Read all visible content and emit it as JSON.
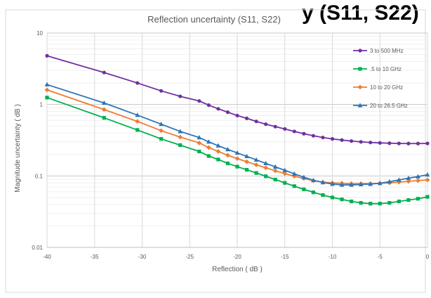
{
  "chart_data": {
    "type": "line",
    "header_fragment": "y (S11, S22)",
    "title": "Reflection uncertainty (S11, S22)",
    "xlabel": "Reflection ( dB )",
    "ylabel": "Magnitude uncertainty ( dB )",
    "xlim": [
      -40,
      0
    ],
    "ylim": [
      0.01,
      10
    ],
    "y_scale": "log",
    "x_ticks": [
      "-40",
      "-35",
      "-30",
      "-25",
      "-20",
      "-15",
      "-10",
      "-5",
      "0"
    ],
    "y_ticks": [
      "0.01",
      "0.1",
      "1",
      "10"
    ],
    "grid": true,
    "legend_position": "top-right",
    "series": [
      {
        "name": "3 to 500 MHz",
        "color": "#7030a0",
        "marker": "circle",
        "x": [
          -40,
          -34,
          -30.5,
          -28,
          -26,
          -24,
          -23,
          -22,
          -21,
          -20,
          -19,
          -18,
          -17,
          -16,
          -15,
          -14,
          -13,
          -12,
          -11,
          -10,
          -9,
          -8,
          -7,
          -6,
          -5,
          -4,
          -3,
          -2,
          -1,
          0
        ],
        "y": [
          4.8,
          2.8,
          2.0,
          1.55,
          1.3,
          1.12,
          0.98,
          0.87,
          0.78,
          0.7,
          0.64,
          0.58,
          0.53,
          0.49,
          0.455,
          0.42,
          0.39,
          0.365,
          0.345,
          0.33,
          0.318,
          0.308,
          0.3,
          0.294,
          0.29,
          0.287,
          0.285,
          0.284,
          0.284,
          0.285
        ]
      },
      {
        "name": ".5 to 10 GHz",
        "color": "#00b050",
        "marker": "square",
        "x": [
          -40,
          -34,
          -30.5,
          -28,
          -26,
          -24,
          -23,
          -22,
          -21,
          -20,
          -19,
          -18,
          -17,
          -16,
          -15,
          -14,
          -13,
          -12,
          -11,
          -10,
          -9,
          -8,
          -7,
          -6,
          -5,
          -4,
          -3,
          -2,
          -1,
          0
        ],
        "y": [
          1.25,
          0.65,
          0.44,
          0.33,
          0.27,
          0.22,
          0.19,
          0.17,
          0.15,
          0.135,
          0.122,
          0.11,
          0.099,
          0.089,
          0.08,
          0.072,
          0.065,
          0.059,
          0.054,
          0.05,
          0.047,
          0.044,
          0.042,
          0.041,
          0.041,
          0.042,
          0.044,
          0.046,
          0.048,
          0.051
        ]
      },
      {
        "name": "10 to 20 GHz",
        "color": "#ed7d31",
        "marker": "diamond",
        "x": [
          -40,
          -34,
          -30.5,
          -28,
          -26,
          -24,
          -23,
          -22,
          -21,
          -20,
          -19,
          -18,
          -17,
          -16,
          -15,
          -14,
          -13,
          -12,
          -11,
          -10,
          -9,
          -8,
          -7,
          -6,
          -5,
          -4,
          -3,
          -2,
          -1,
          0
        ],
        "y": [
          1.6,
          0.85,
          0.58,
          0.43,
          0.35,
          0.29,
          0.25,
          0.22,
          0.195,
          0.175,
          0.158,
          0.143,
          0.13,
          0.118,
          0.108,
          0.099,
          0.092,
          0.086,
          0.082,
          0.08,
          0.079,
          0.078,
          0.078,
          0.078,
          0.079,
          0.08,
          0.082,
          0.084,
          0.086,
          0.088
        ]
      },
      {
        "name": "20 to 26.5 GHz",
        "color": "#2e75b6",
        "marker": "triangle",
        "x": [
          -40,
          -34,
          -30.5,
          -28,
          -26,
          -24,
          -23,
          -22,
          -21,
          -20,
          -19,
          -18,
          -17,
          -16,
          -15,
          -14,
          -13,
          -12,
          -11,
          -10,
          -9,
          -8,
          -7,
          -6,
          -5,
          -4,
          -3,
          -2,
          -1,
          0
        ],
        "y": [
          1.9,
          1.05,
          0.71,
          0.53,
          0.42,
          0.345,
          0.3,
          0.265,
          0.235,
          0.21,
          0.188,
          0.168,
          0.15,
          0.134,
          0.12,
          0.107,
          0.096,
          0.087,
          0.081,
          0.077,
          0.075,
          0.075,
          0.076,
          0.077,
          0.079,
          0.083,
          0.088,
          0.093,
          0.098,
          0.104
        ]
      }
    ]
  }
}
